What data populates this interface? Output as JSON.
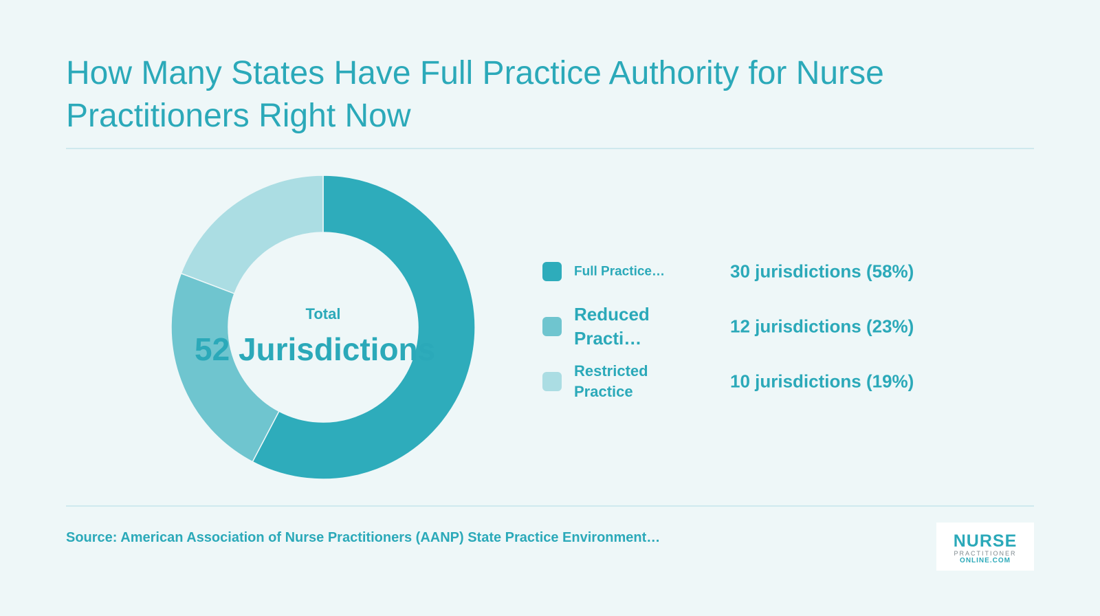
{
  "title": "How Many States Have Full Practice Authority for Nurse Practitioners Right Now",
  "chart_data": {
    "type": "pie",
    "donut": true,
    "categories": [
      "Full Practice…",
      "Reduced Practi…",
      "Restricted Practice"
    ],
    "values": [
      30,
      12,
      10
    ],
    "value_labels": [
      "30 jurisdictions (58%)",
      "12 jurisdictions (23%)",
      "10 jurisdictions (19%)"
    ],
    "colors": [
      "#2eacbb",
      "#6fc5cf",
      "#abdde3"
    ],
    "center_label": "Total",
    "center_value": "52 Jurisdictions",
    "legend_placement": "right"
  },
  "source": "Source: American Association of Nurse Practitioners (AANP) State Practice Environment…",
  "logo": {
    "main": "NURSE",
    "sub1": "PRACTITIONER",
    "sub2": "ONLINE.COM"
  }
}
